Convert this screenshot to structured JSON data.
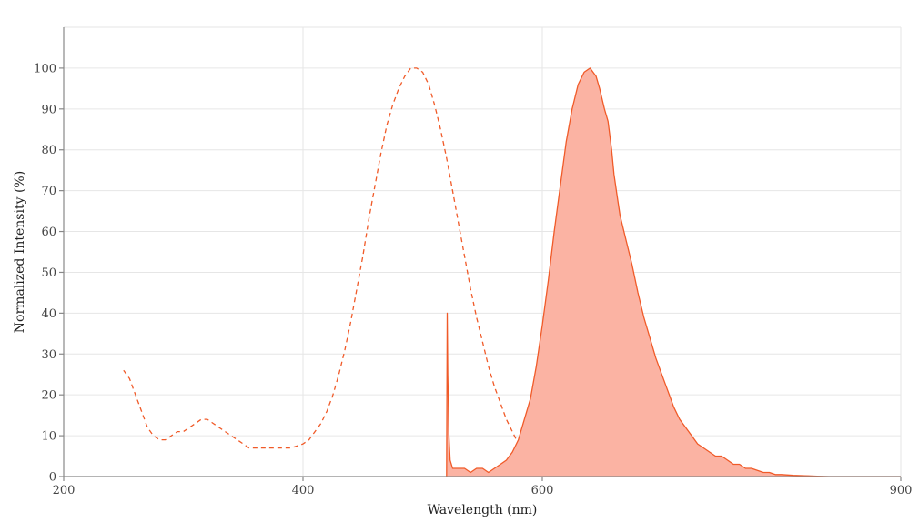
{
  "chart_data": {
    "type": "line",
    "xlabel": "Wavelength (nm)",
    "ylabel": "Normalized Intensity (%)",
    "xlim": [
      200,
      900
    ],
    "ylim": [
      0,
      110
    ],
    "xticks": [
      200,
      400,
      600,
      900
    ],
    "yticks": [
      0,
      10,
      20,
      30,
      40,
      50,
      60,
      70,
      80,
      90,
      100
    ],
    "grid": true,
    "colors": {
      "series": "#f05a28",
      "fill": "#fbb3a3"
    },
    "series": [
      {
        "style": "dashed",
        "x": [
          250,
          255,
          260,
          265,
          270,
          275,
          280,
          285,
          290,
          295,
          300,
          305,
          310,
          315,
          320,
          325,
          330,
          335,
          340,
          345,
          350,
          355,
          360,
          370,
          380,
          390,
          400,
          405,
          410,
          415,
          420,
          425,
          430,
          435,
          440,
          445,
          450,
          455,
          460,
          465,
          470,
          475,
          480,
          485,
          490,
          495,
          500,
          505,
          510,
          515,
          520,
          525,
          530,
          535,
          540,
          545,
          550,
          555,
          560,
          565,
          570,
          575,
          580,
          585,
          590,
          595,
          600,
          605,
          610,
          615,
          620,
          625,
          630,
          635,
          640,
          645,
          650,
          655
        ],
        "y": [
          26,
          24,
          20,
          16,
          12,
          10,
          9,
          9,
          10,
          11,
          11,
          12,
          13,
          14,
          14,
          13,
          12,
          11,
          10,
          9,
          8,
          7,
          7,
          7,
          7,
          7,
          8,
          9,
          11,
          13,
          16,
          20,
          25,
          31,
          38,
          46,
          54,
          63,
          71,
          79,
          86,
          91,
          95,
          98,
          100,
          100,
          99,
          96,
          91,
          85,
          78,
          70,
          62,
          54,
          46,
          39,
          33,
          27,
          22,
          18,
          14,
          11,
          8,
          6,
          4,
          3,
          2,
          1.5,
          1,
          0.8,
          0.5,
          0.3,
          0.2,
          0.1,
          0,
          0,
          0,
          0
        ]
      },
      {
        "style": "solid-filled",
        "x": [
          520,
          520.5,
          521,
          522,
          523,
          525,
          530,
          535,
          540,
          545,
          550,
          555,
          560,
          565,
          570,
          575,
          580,
          585,
          590,
          595,
          600,
          605,
          610,
          615,
          620,
          625,
          630,
          635,
          640,
          645,
          648,
          652,
          655,
          658,
          660,
          663,
          665,
          670,
          675,
          680,
          685,
          690,
          695,
          700,
          705,
          710,
          715,
          720,
          725,
          730,
          735,
          740,
          745,
          750,
          755,
          760,
          765,
          770,
          775,
          780,
          785,
          790,
          795,
          800,
          810,
          820,
          830,
          840,
          850,
          860,
          870,
          880,
          890,
          900
        ],
        "y": [
          0,
          40,
          25,
          10,
          4,
          2,
          2,
          2,
          1,
          2,
          2,
          1,
          2,
          3,
          4,
          6,
          9,
          14,
          19,
          27,
          37,
          48,
          60,
          71,
          82,
          90,
          96,
          99,
          100,
          98,
          95,
          90,
          87,
          80,
          74,
          68,
          64,
          58,
          52,
          45,
          39,
          34,
          29,
          25,
          21,
          17,
          14,
          12,
          10,
          8,
          7,
          6,
          5,
          5,
          4,
          3,
          3,
          2,
          2,
          1.5,
          1,
          1,
          0.5,
          0.5,
          0.3,
          0.2,
          0.1,
          0,
          0,
          0,
          0,
          0,
          0,
          0
        ]
      }
    ]
  }
}
